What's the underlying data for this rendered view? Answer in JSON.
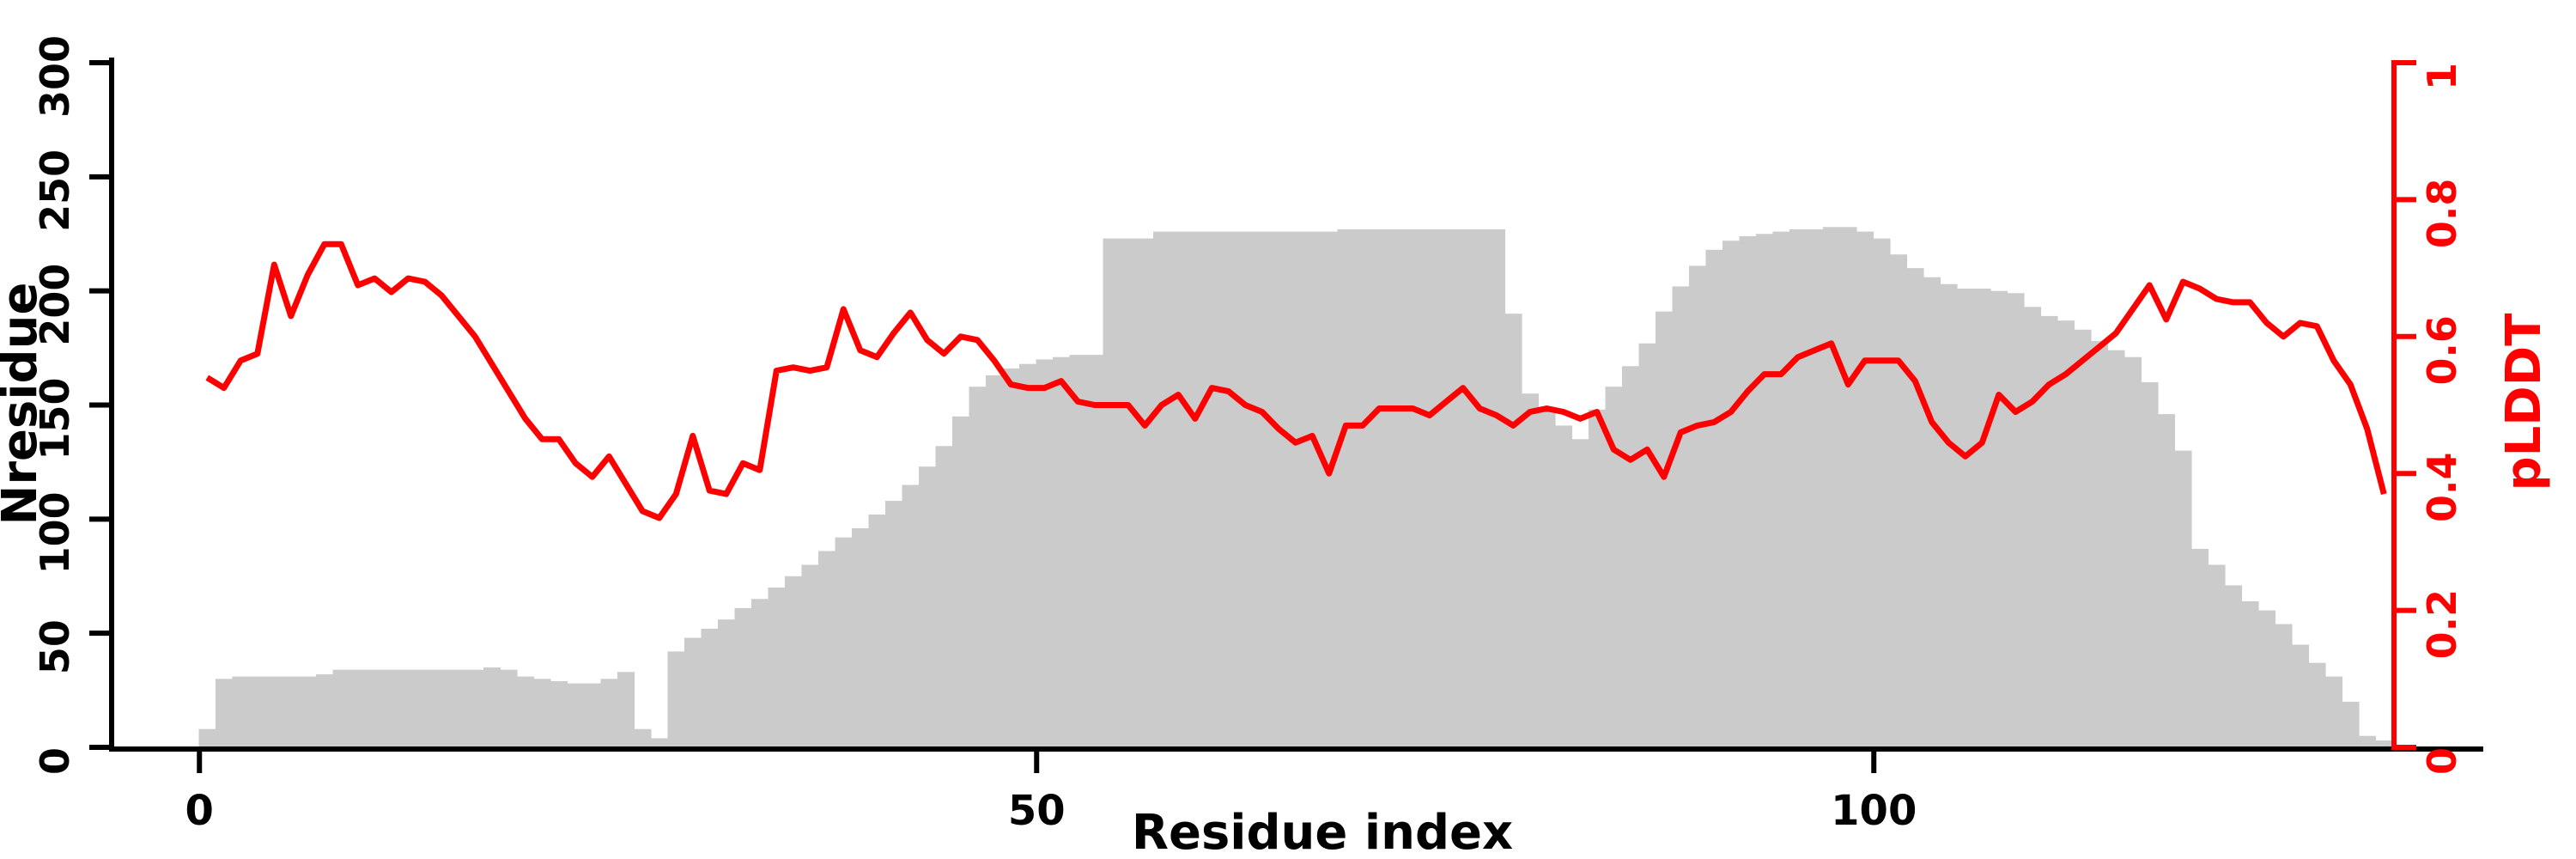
{
  "figure": {
    "background": "#ffffff",
    "colors": {
      "bar_fill": "#cbcbcb",
      "line_color": "#ff0000",
      "axis_color": "#000000",
      "right_axis_color": "#ff0000"
    },
    "x_axis": {
      "title": "Residue index",
      "tick_values": [
        0,
        50,
        100
      ],
      "tick_labels": [
        "0",
        "50",
        "100"
      ]
    },
    "y_left": {
      "title": "Nresidue",
      "range": [
        0,
        300
      ],
      "tick_values": [
        0,
        50,
        100,
        150,
        200,
        250,
        300
      ],
      "tick_labels": [
        "0",
        "50",
        "100",
        "150",
        "200",
        "250",
        "300"
      ]
    },
    "y_right": {
      "title": "pLDDT",
      "range": [
        0,
        1
      ],
      "tick_values": [
        0,
        0.2,
        0.4,
        0.6,
        0.8,
        1
      ],
      "tick_labels": [
        "0",
        "0.2",
        "0.4",
        "0.6",
        "0.8",
        "1"
      ]
    }
  },
  "chart_data": {
    "type": "bar",
    "subtype": "dual-axis bar+line",
    "title": "",
    "xlabel": "Residue index",
    "ylabel_left": "Nresidue",
    "ylabel_right": "pLDDT",
    "xlim": [
      0,
      131
    ],
    "ylim_left": [
      0,
      300
    ],
    "ylim_right": [
      0,
      1
    ],
    "grid": false,
    "legend": "none",
    "x": [
      0,
      1,
      2,
      3,
      4,
      5,
      6,
      7,
      8,
      9,
      10,
      11,
      12,
      13,
      14,
      15,
      16,
      17,
      18,
      19,
      20,
      21,
      22,
      23,
      24,
      25,
      26,
      27,
      28,
      29,
      30,
      31,
      32,
      33,
      34,
      35,
      36,
      37,
      38,
      39,
      40,
      41,
      42,
      43,
      44,
      45,
      46,
      47,
      48,
      49,
      50,
      51,
      52,
      53,
      54,
      55,
      56,
      57,
      58,
      59,
      60,
      61,
      62,
      63,
      64,
      65,
      66,
      67,
      68,
      69,
      70,
      71,
      72,
      73,
      74,
      75,
      76,
      77,
      78,
      79,
      80,
      81,
      82,
      83,
      84,
      85,
      86,
      87,
      88,
      89,
      90,
      91,
      92,
      93,
      94,
      95,
      96,
      97,
      98,
      99,
      100,
      101,
      102,
      103,
      104,
      105,
      106,
      107,
      108,
      109,
      110,
      111,
      112,
      113,
      114,
      115,
      116,
      117,
      118,
      119,
      120,
      121,
      122,
      123,
      124,
      125,
      126,
      127,
      128,
      129,
      130
    ],
    "series": [
      {
        "name": "Nresidue",
        "type": "bar",
        "axis": "left",
        "color": "#cbcbcb",
        "values": [
          8,
          30,
          31,
          31,
          31,
          31,
          31,
          32,
          34,
          34,
          34,
          34,
          34,
          34,
          34,
          34,
          34,
          35,
          34,
          31,
          30,
          29,
          28,
          28,
          30,
          33,
          8,
          4,
          42,
          48,
          52,
          56,
          61,
          65,
          70,
          75,
          80,
          86,
          92,
          96,
          102,
          108,
          115,
          123,
          132,
          145,
          158,
          163,
          166,
          168,
          170,
          171,
          172,
          172,
          223,
          223,
          223,
          226,
          226,
          226,
          226,
          226,
          226,
          226,
          226,
          226,
          226,
          226,
          227,
          227,
          227,
          227,
          227,
          227,
          227,
          227,
          227,
          227,
          190,
          155,
          148,
          141,
          135,
          148,
          158,
          167,
          177,
          191,
          202,
          211,
          218,
          222,
          224,
          225,
          226,
          227,
          227,
          228,
          228,
          226,
          223,
          216,
          210,
          206,
          203,
          201,
          201,
          200,
          199,
          193,
          189,
          187,
          183,
          178,
          174,
          171,
          160,
          146,
          130,
          87,
          80,
          71,
          64,
          60,
          54,
          45,
          37,
          31,
          20,
          5,
          3
        ]
      },
      {
        "name": "pLDDT",
        "type": "line",
        "axis": "right",
        "color": "#ff0000",
        "values": [
          0.54,
          0.525,
          0.565,
          0.575,
          0.705,
          0.63,
          0.69,
          0.735,
          0.735,
          0.675,
          0.685,
          0.665,
          0.685,
          0.68,
          0.66,
          0.63,
          0.6,
          0.56,
          0.52,
          0.48,
          0.45,
          0.45,
          0.415,
          0.395,
          0.425,
          0.385,
          0.345,
          0.335,
          0.37,
          0.455,
          0.375,
          0.37,
          0.415,
          0.405,
          0.55,
          0.555,
          0.55,
          0.555,
          0.64,
          0.58,
          0.57,
          0.605,
          0.635,
          0.595,
          0.575,
          0.6,
          0.595,
          0.565,
          0.53,
          0.525,
          0.525,
          0.535,
          0.505,
          0.5,
          0.5,
          0.5,
          0.47,
          0.5,
          0.515,
          0.48,
          0.525,
          0.52,
          0.5,
          0.49,
          0.465,
          0.445,
          0.455,
          0.4,
          0.47,
          0.47,
          0.495,
          0.495,
          0.495,
          0.485,
          0.505,
          0.525,
          0.495,
          0.485,
          0.47,
          0.49,
          0.495,
          0.49,
          0.48,
          0.49,
          0.435,
          0.42,
          0.435,
          0.395,
          0.46,
          0.47,
          0.475,
          0.49,
          0.52,
          0.545,
          0.545,
          0.57,
          0.58,
          0.59,
          0.53,
          0.565,
          0.565,
          0.565,
          0.535,
          0.475,
          0.445,
          0.425,
          0.445,
          0.515,
          0.49,
          0.505,
          0.53,
          0.545,
          0.565,
          0.585,
          0.605,
          0.64,
          0.675,
          0.625,
          0.68,
          0.67,
          0.655,
          0.65,
          0.65,
          0.62,
          0.6,
          0.62,
          0.615,
          0.565,
          0.53,
          0.465,
          0.37
        ]
      }
    ]
  }
}
